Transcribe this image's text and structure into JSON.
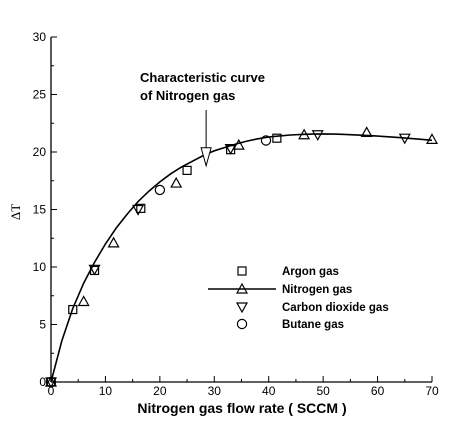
{
  "chart_data": {
    "type": "scatter",
    "xlabel": "Nitrogen gas flow rate ( SCCM )",
    "ylabel": "ΔT",
    "xlim": [
      0,
      70
    ],
    "ylim": [
      0,
      30
    ],
    "x_ticks": [
      0,
      10,
      20,
      30,
      40,
      50,
      60,
      70
    ],
    "y_ticks": [
      0,
      5,
      10,
      15,
      20,
      25,
      30
    ],
    "grid": false,
    "legend_position": "bottom-right",
    "annotation": {
      "lines": [
        "Characteristic curve",
        "of Nitrogen gas"
      ],
      "arrow_target": [
        28.5,
        18.8
      ]
    },
    "curve": {
      "name": "Nitrogen gas",
      "x": [
        0,
        2,
        4,
        6,
        8,
        10,
        12,
        14,
        16,
        18,
        20,
        22,
        24,
        26,
        28,
        30,
        32,
        34,
        36,
        38,
        40,
        42,
        44,
        46,
        48,
        50,
        52,
        54,
        56,
        58,
        60,
        62,
        64,
        66,
        68,
        70
      ],
      "y": [
        0,
        3.6,
        6.4,
        8.6,
        10.4,
        12.0,
        13.4,
        14.6,
        15.7,
        16.6,
        17.4,
        18.1,
        18.7,
        19.2,
        19.7,
        20.1,
        20.4,
        20.7,
        20.95,
        21.15,
        21.3,
        21.4,
        21.48,
        21.53,
        21.56,
        21.57,
        21.56,
        21.53,
        21.49,
        21.44,
        21.38,
        21.32,
        21.25,
        21.18,
        21.1,
        21.02
      ]
    },
    "series": [
      {
        "name": "Argon gas",
        "marker": "square",
        "x": [
          0,
          4,
          8,
          16.5,
          25,
          33,
          41.5
        ],
        "y": [
          0,
          6.3,
          9.7,
          15.1,
          18.4,
          20.2,
          21.2
        ]
      },
      {
        "name": "Nitrogen gas",
        "marker": "triangle-up",
        "x": [
          0,
          6,
          11.5,
          23,
          34.5,
          46.5,
          58,
          70
        ],
        "y": [
          0,
          7.0,
          12.1,
          17.3,
          20.6,
          21.5,
          21.7,
          21.1
        ]
      },
      {
        "name": "Carbon dioxide gas",
        "marker": "triangle-down",
        "x": [
          0,
          8,
          16,
          33,
          49,
          65
        ],
        "y": [
          0,
          9.8,
          15.0,
          20.3,
          21.5,
          21.2
        ]
      },
      {
        "name": "Butane gas",
        "marker": "circle",
        "x": [
          0,
          20,
          39.5
        ],
        "y": [
          0,
          16.7,
          21.0
        ]
      }
    ]
  }
}
